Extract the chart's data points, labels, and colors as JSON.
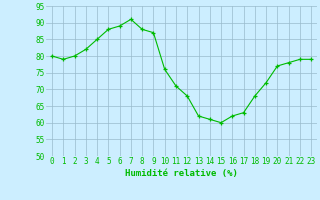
{
  "x": [
    0,
    1,
    2,
    3,
    4,
    5,
    6,
    7,
    8,
    9,
    10,
    11,
    12,
    13,
    14,
    15,
    16,
    17,
    18,
    19,
    20,
    21,
    22,
    23
  ],
  "y": [
    80,
    79,
    80,
    82,
    85,
    88,
    89,
    91,
    88,
    87,
    76,
    71,
    68,
    62,
    61,
    60,
    62,
    63,
    68,
    72,
    77,
    78,
    79,
    79
  ],
  "line_color": "#00bb00",
  "bg_color": "#cceeff",
  "grid_color": "#99bbcc",
  "xlabel": "Humidité relative (%)",
  "xlabel_color": "#00bb00",
  "ylim": [
    50,
    95
  ],
  "yticks": [
    50,
    55,
    60,
    65,
    70,
    75,
    80,
    85,
    90,
    95
  ],
  "xticks": [
    0,
    1,
    2,
    3,
    4,
    5,
    6,
    7,
    8,
    9,
    10,
    11,
    12,
    13,
    14,
    15,
    16,
    17,
    18,
    19,
    20,
    21,
    22,
    23
  ],
  "tick_fontsize": 5.5,
  "xlabel_fontsize": 6.5
}
